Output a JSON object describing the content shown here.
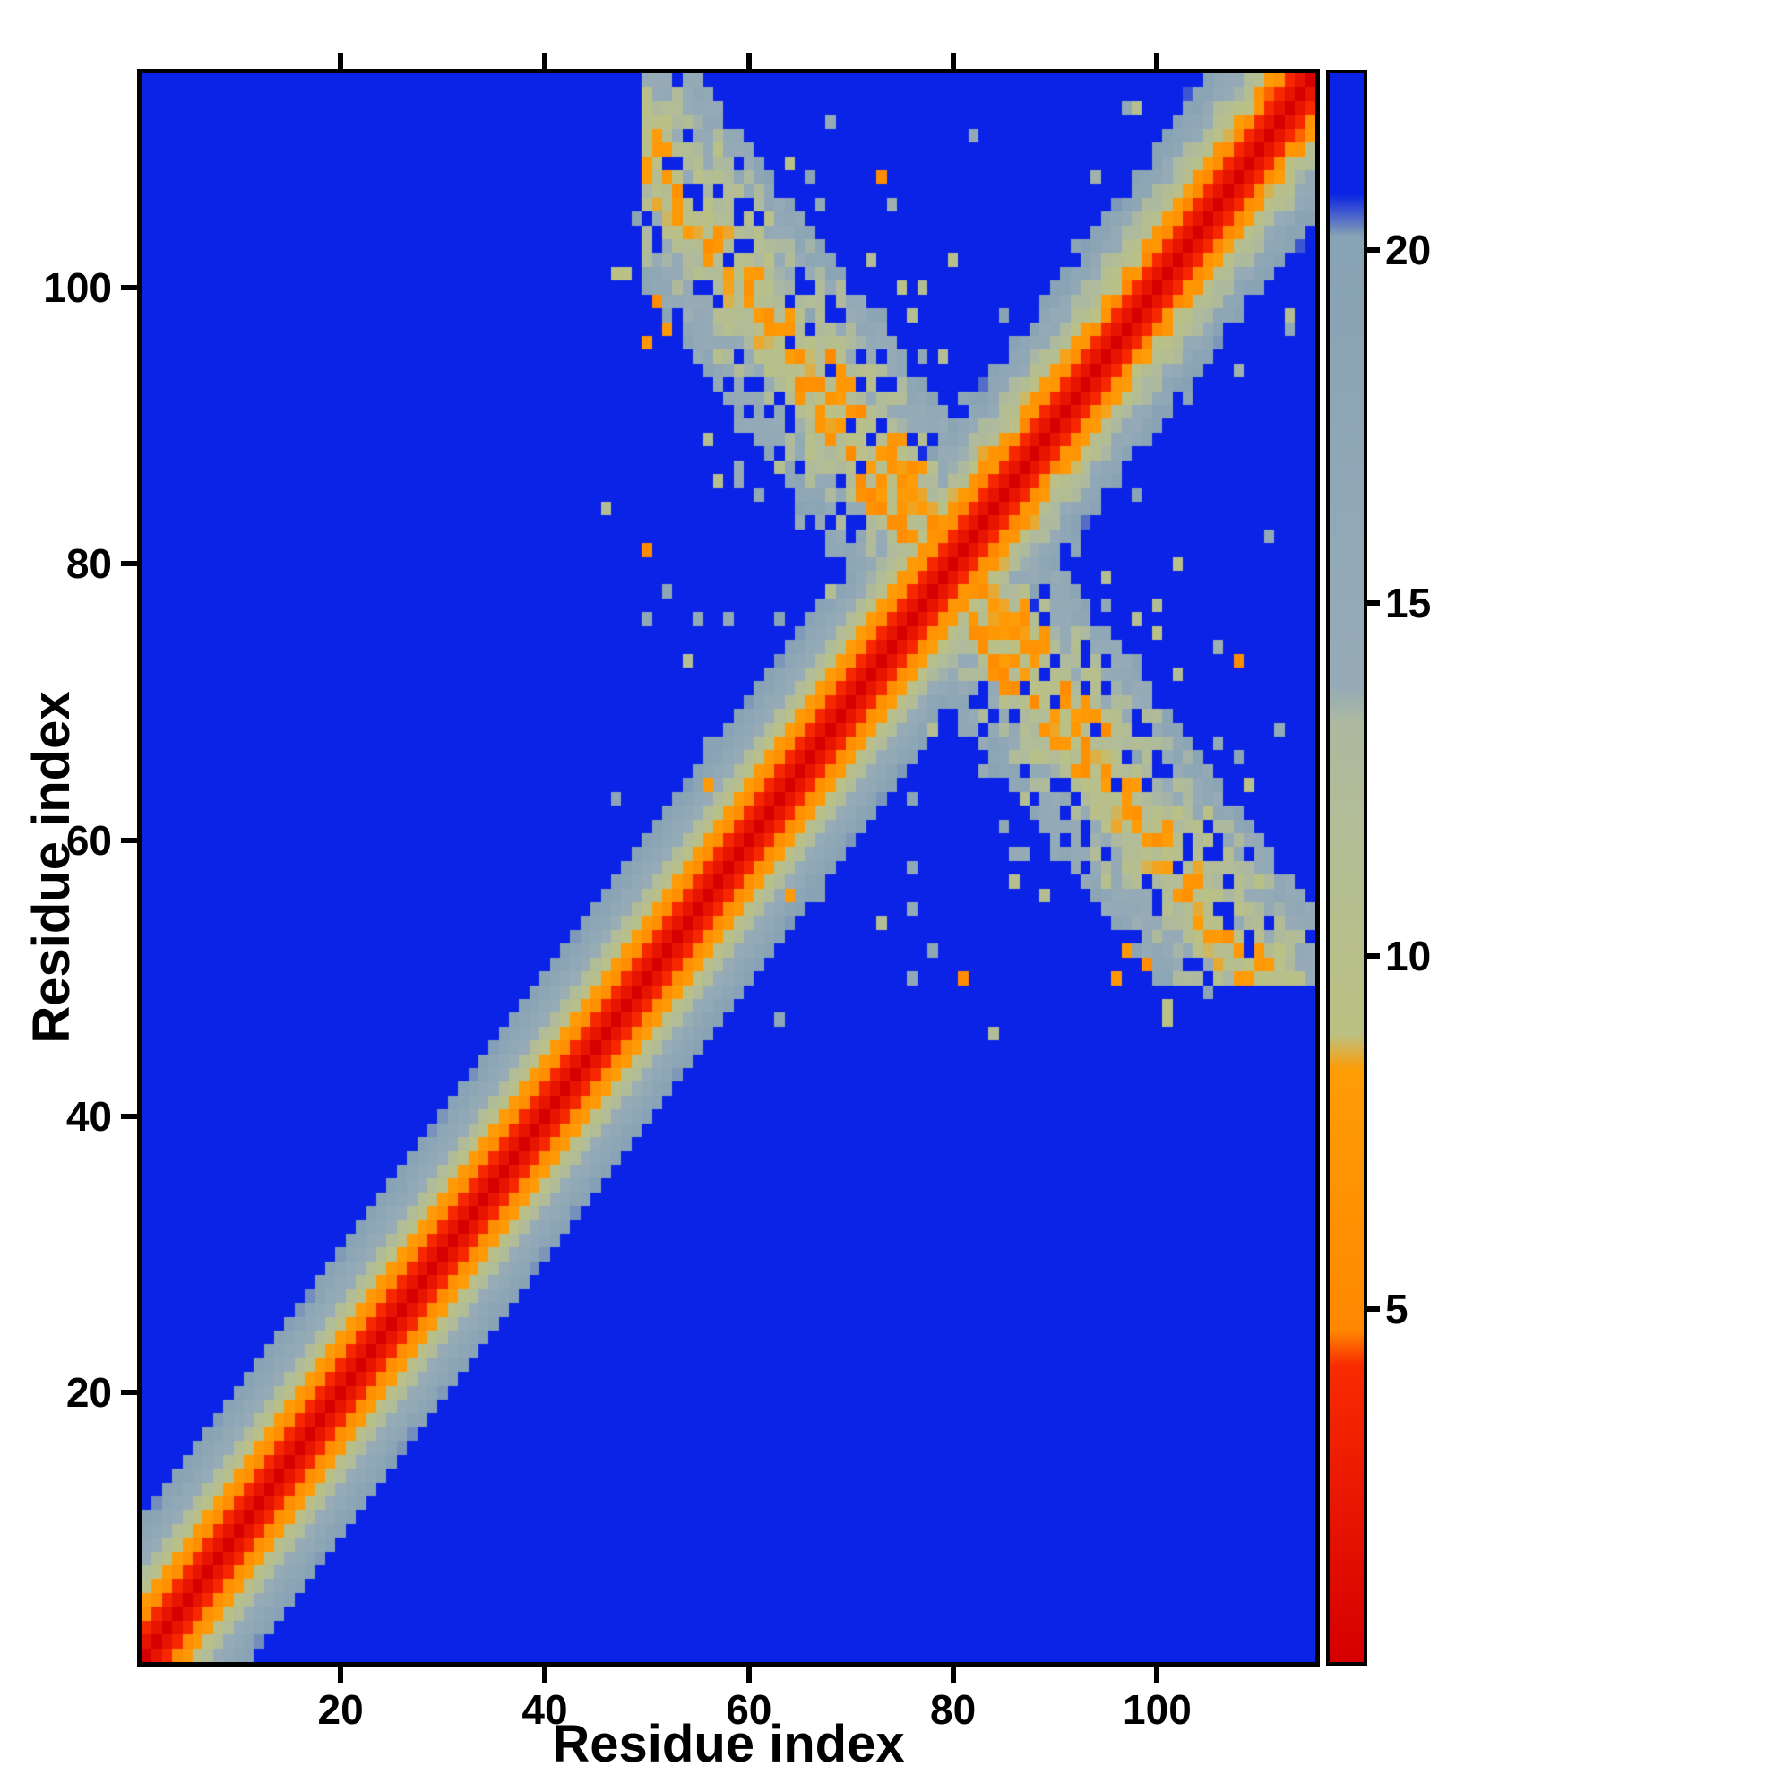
{
  "chart_data": {
    "type": "heatmap",
    "title": "",
    "xlabel": "Residue index",
    "ylabel": "Residue index",
    "x_range": [
      1,
      115
    ],
    "y_range": [
      1,
      115
    ],
    "x_ticks": [
      20,
      40,
      60,
      80,
      100
    ],
    "y_ticks": [
      20,
      40,
      60,
      80,
      100
    ],
    "n_residues": 115,
    "grid": false,
    "legend": "colorbar-right",
    "colorbar": {
      "vmin": 0,
      "vmax": 22.5,
      "ticks": [
        5,
        10,
        15,
        20
      ]
    },
    "background_value_color": "#0b23e6",
    "colormap_anchors": [
      [
        0.0,
        "#d60000"
      ],
      [
        4.2,
        "#f92b00"
      ],
      [
        4.7,
        "#ff8800"
      ],
      [
        8.4,
        "#ff9d07"
      ],
      [
        8.9,
        "#bcc284"
      ],
      [
        13.3,
        "#aebaa0"
      ],
      [
        13.8,
        "#97acb7"
      ],
      [
        20.2,
        "#88a3b5"
      ],
      [
        20.8,
        "#0b23e6"
      ],
      [
        22.5,
        "#0b23e6"
      ]
    ],
    "value_model": {
      "description": "Symmetric residue-residue distance map: red diagonal band (v ~ 2*|i-j|) saturating into blue background (~22); antiparallel contact band along i+j ~ 160 for residues ~52-113 crossing the diagonal near residue 80, with scattered gray/orange contact speckles in the 46-115 region",
      "seed": 7,
      "band_slope": 2.0,
      "band_rough_low": 0.6,
      "band_rough_high": 3.0,
      "rough_start": 78,
      "hairpin_center_sum": 160,
      "hairpin_halfwidth": 10,
      "hairpin_base": 8.5,
      "hairpin_slope": 0.8,
      "hairpin_fill_prob": 0.85,
      "contact_region_min": 50,
      "speckle_prob_near": 0.1,
      "speckle_prob_far": 0.02,
      "speckle_prob_remote": 0.008
    }
  }
}
